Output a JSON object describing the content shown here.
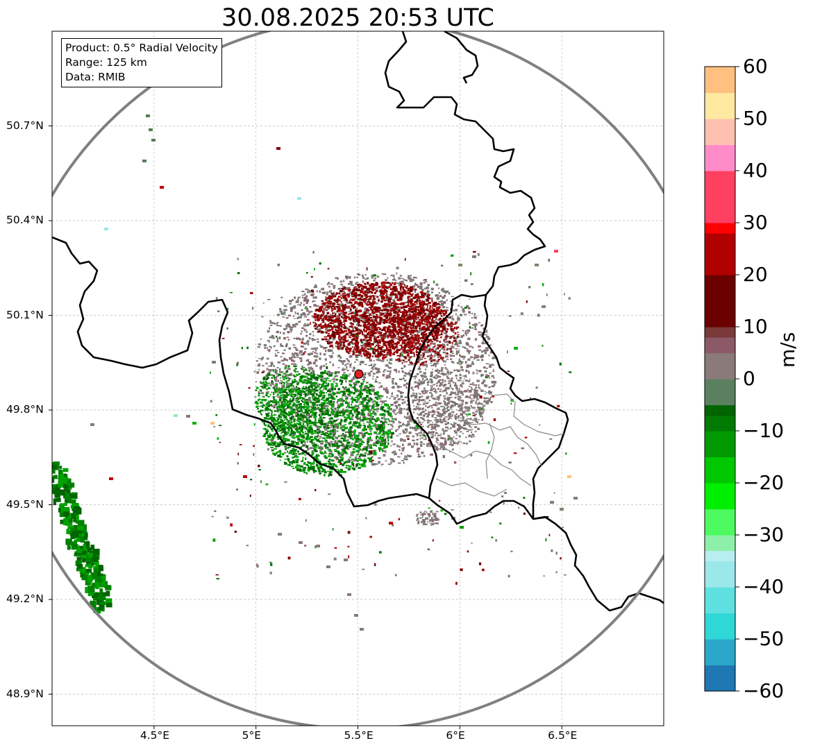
{
  "title": "30.08.2025 20:53 UTC",
  "info": {
    "product": "Product: 0.5° Radial Velocity",
    "range": "Range: 125 km",
    "source": "Data: RMIB"
  },
  "map": {
    "lon_range": [
      4.0,
      7.0
    ],
    "lat_range": [
      48.8,
      51.0
    ],
    "lon_ticks": [
      {
        "v": 4.5,
        "label": "4.5°E"
      },
      {
        "v": 5.0,
        "label": "5°E"
      },
      {
        "v": 5.5,
        "label": "5.5°E"
      },
      {
        "v": 6.0,
        "label": "6°E"
      },
      {
        "v": 6.5,
        "label": "6.5°E"
      }
    ],
    "lat_ticks": [
      {
        "v": 50.7,
        "label": "50.7°N"
      },
      {
        "v": 50.4,
        "label": "50.4°N"
      },
      {
        "v": 50.1,
        "label": "50.1°N"
      },
      {
        "v": 49.8,
        "label": "49.8°N"
      },
      {
        "v": 49.5,
        "label": "49.5°N"
      },
      {
        "v": 49.2,
        "label": "49.2°N"
      },
      {
        "v": 48.9,
        "label": "48.9°N"
      }
    ],
    "radar": {
      "lon": 5.505,
      "lat": 49.914
    },
    "range_km": 125,
    "grid": true,
    "colors": {
      "border": "#000000",
      "range_ring": "#808080",
      "radar_marker": "#e02020",
      "outgoing": "#8b0000",
      "incoming": "#008000",
      "zero": "#8a7a7a"
    }
  },
  "colorbar": {
    "label": "m/s",
    "min": -60,
    "max": 60,
    "ticks": [
      {
        "v": 60,
        "label": "60"
      },
      {
        "v": 50,
        "label": "50"
      },
      {
        "v": 40,
        "label": "40"
      },
      {
        "v": 30,
        "label": "30"
      },
      {
        "v": 20,
        "label": "20"
      },
      {
        "v": 10,
        "label": "10"
      },
      {
        "v": 0,
        "label": "0"
      },
      {
        "v": -10,
        "label": "−10"
      },
      {
        "v": -20,
        "label": "−20"
      },
      {
        "v": -30,
        "label": "−30"
      },
      {
        "v": -40,
        "label": "−40"
      },
      {
        "v": -50,
        "label": "−50"
      },
      {
        "v": -60,
        "label": "−60"
      }
    ],
    "stops": [
      {
        "v": -60,
        "color": "#1f77b4"
      },
      {
        "v": -55,
        "color": "#2aa7c9"
      },
      {
        "v": -50,
        "color": "#2fd7d7"
      },
      {
        "v": -45,
        "color": "#5ee0e0"
      },
      {
        "v": -40,
        "color": "#9be8ea"
      },
      {
        "v": -35,
        "color": "#b8eef0"
      },
      {
        "v": -33,
        "color": "#8ef0a8"
      },
      {
        "v": -30,
        "color": "#4dfa60"
      },
      {
        "v": -25,
        "color": "#00ee00"
      },
      {
        "v": -20,
        "color": "#00c800"
      },
      {
        "v": -15,
        "color": "#009a00"
      },
      {
        "v": -10,
        "color": "#007a00"
      },
      {
        "v": -7,
        "color": "#006400"
      },
      {
        "v": -5,
        "color": "#5a8060"
      },
      {
        "v": 0,
        "color": "#8a7a7a"
      },
      {
        "v": 5,
        "color": "#8c5a66"
      },
      {
        "v": 8,
        "color": "#7a3a3a"
      },
      {
        "v": 10,
        "color": "#6b0000"
      },
      {
        "v": 20,
        "color": "#b00000"
      },
      {
        "v": 28,
        "color": "#ff0000"
      },
      {
        "v": 30,
        "color": "#ff4060"
      },
      {
        "v": 40,
        "color": "#ff8cc8"
      },
      {
        "v": 45,
        "color": "#ffc0b0"
      },
      {
        "v": 50,
        "color": "#ffe8a0"
      },
      {
        "v": 55,
        "color": "#ffc080"
      },
      {
        "v": 60,
        "color": "#ff9a55"
      }
    ]
  }
}
